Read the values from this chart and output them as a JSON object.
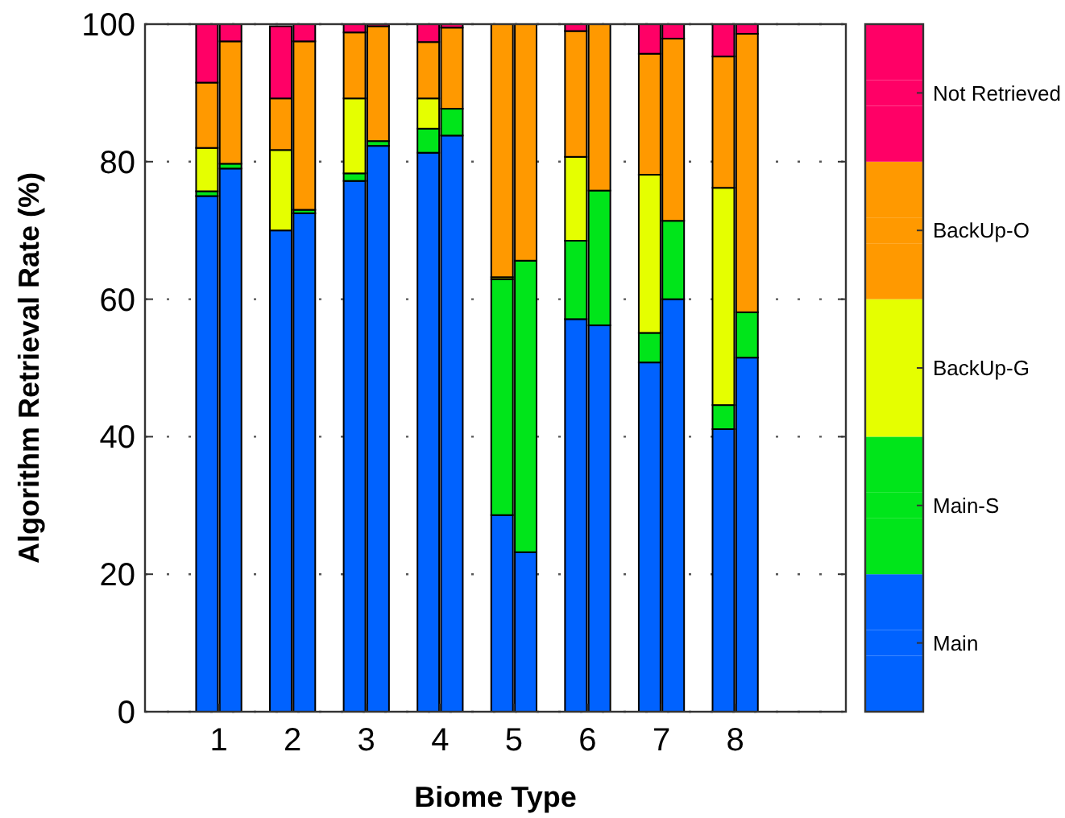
{
  "chart_data": {
    "type": "bar",
    "stacked": true,
    "xlabel": "Biome Type",
    "ylabel": "Algorithm Retrieval Rate (%)",
    "x": [
      0.84,
      1.16,
      1.84,
      2.16,
      2.84,
      3.16,
      3.84,
      4.16,
      4.84,
      5.16,
      5.84,
      6.16,
      6.84,
      7.16,
      7.84,
      8.16
    ],
    "xlim": [
      0,
      9.5
    ],
    "xticks": [
      1,
      2,
      3,
      4,
      5,
      6,
      7,
      8
    ],
    "ylim": [
      0,
      100
    ],
    "yticks": [
      0,
      20,
      40,
      60,
      80,
      100
    ],
    "grid": "y",
    "legend": "right",
    "series": [
      {
        "name": "Main",
        "color": "#0062ff",
        "values": [
          75,
          79,
          70,
          72.5,
          77.2,
          82.3,
          81.3,
          83.8,
          28.6,
          23.2,
          57.1,
          56.2,
          50.8,
          60,
          41.1,
          51.5
        ]
      },
      {
        "name": "Main-S",
        "color": "#00e51a",
        "values": [
          0.7,
          0.7,
          null,
          0.5,
          1.1,
          0.7,
          3.5,
          3.9,
          34.3,
          42.4,
          11.4,
          19.6,
          4.3,
          11.4,
          3.5,
          6.6
        ]
      },
      {
        "name": "BackUp-G",
        "color": "#e5ff00",
        "values": [
          6.3,
          0,
          11.7,
          0,
          10.9,
          0,
          4.4,
          0,
          0.3,
          0,
          12.2,
          0,
          23,
          0,
          31.6,
          0
        ]
      },
      {
        "name": "BackUp-O",
        "color": "#ff9900",
        "values": [
          9.5,
          17.8,
          7.5,
          24.5,
          9.6,
          16.7,
          8.2,
          11.8,
          36.8,
          34.4,
          18.3,
          24.2,
          17.6,
          26.5,
          19.1,
          40.5
        ]
      },
      {
        "name": "Not Retrieved",
        "color": "#ff0066",
        "values": [
          8.5,
          2.5,
          10.5,
          2.5,
          1.2,
          0.3,
          2.6,
          0.5,
          0,
          0,
          1,
          0,
          4.3,
          2.1,
          4.7,
          1.4
        ]
      }
    ]
  }
}
